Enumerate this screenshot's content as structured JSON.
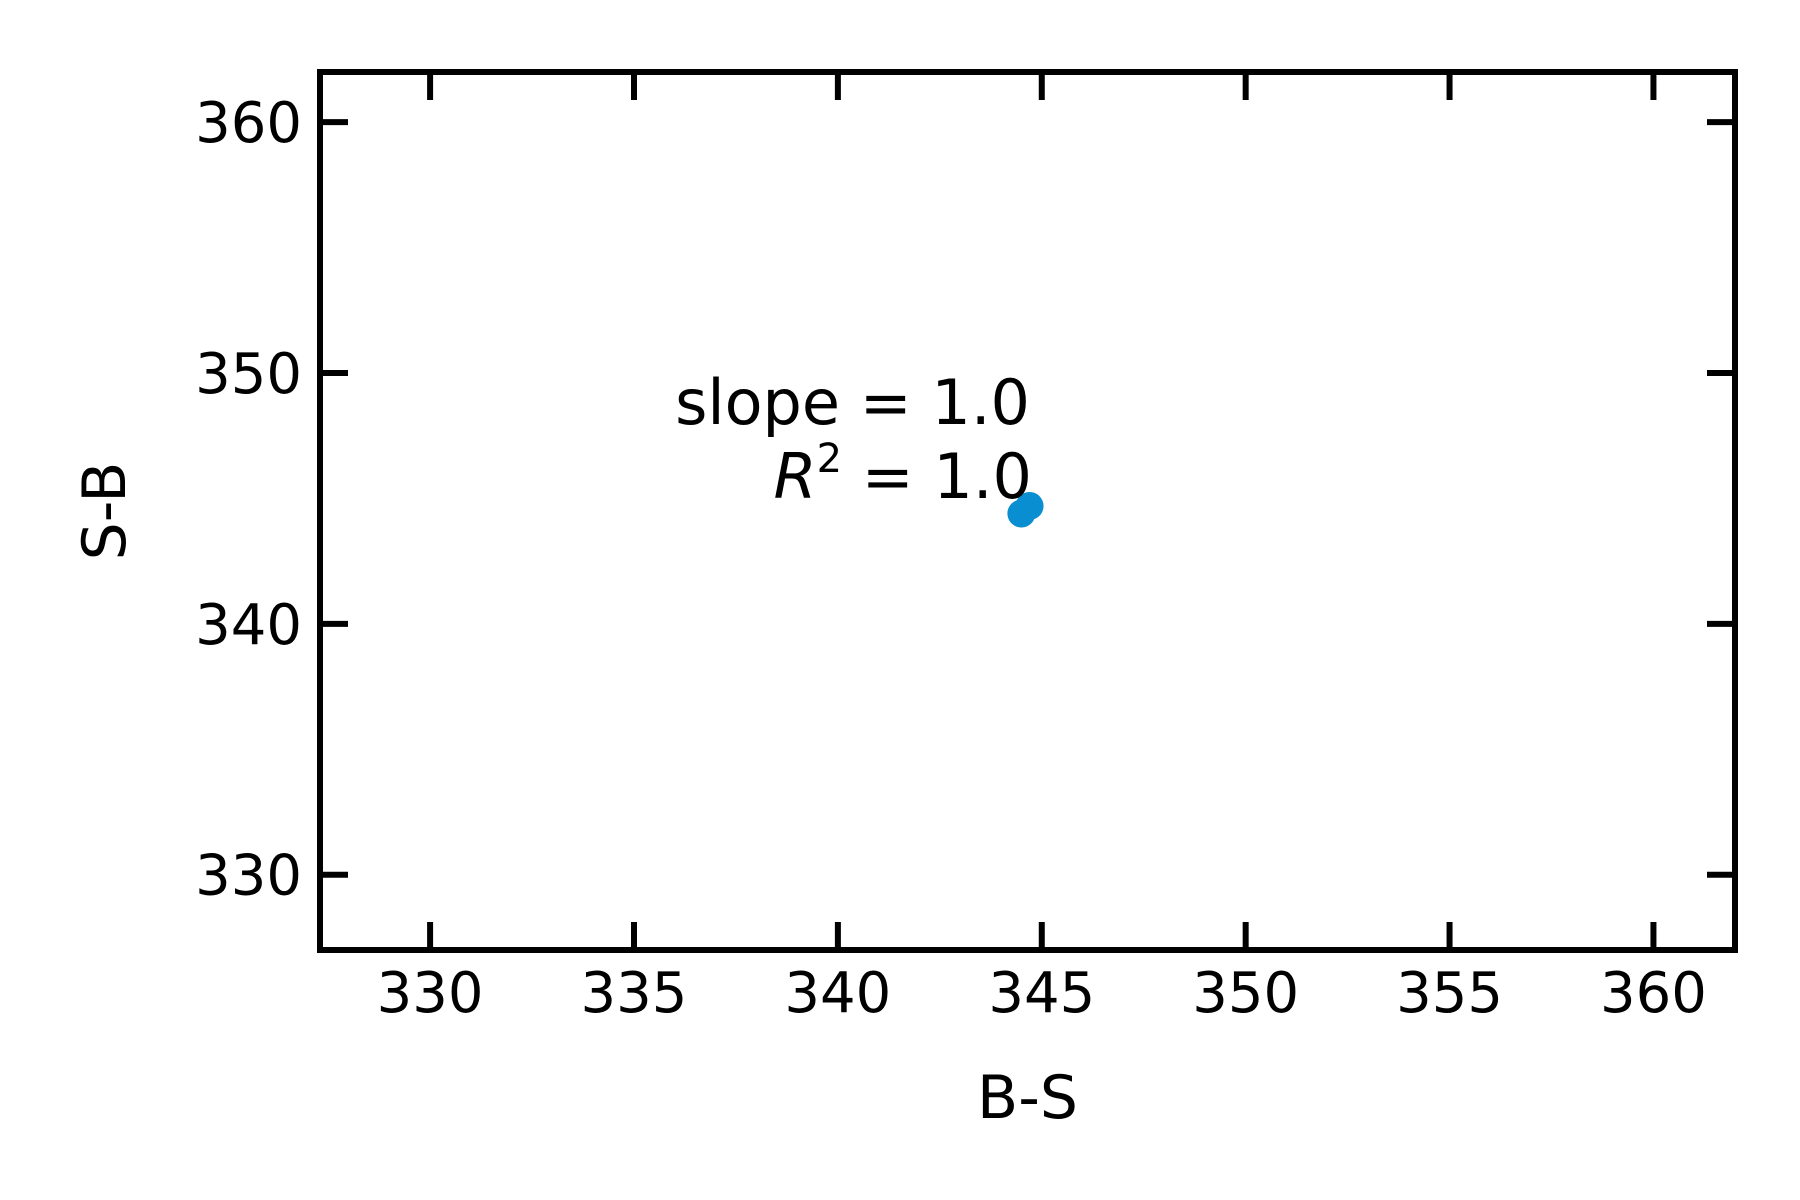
{
  "chart_data": {
    "type": "scatter",
    "xlabel": "B-S",
    "ylabel": "S-B",
    "xlim": [
      327.3,
      362.0
    ],
    "ylim": [
      327.0,
      362.0
    ],
    "x_ticks": [
      330,
      335,
      340,
      345,
      350,
      355,
      360
    ],
    "y_ticks": [
      330,
      340,
      350,
      360
    ],
    "grid": false,
    "marker_color": "#0a8ed2",
    "series": [
      {
        "x": [
          344.5,
          344.7
        ],
        "y": [
          344.4,
          344.7
        ]
      }
    ],
    "annotation": {
      "slope_text": "slope = 1.0",
      "r2_symbol": "R",
      "r2_exponent": "2",
      "r2_value_text": " = 1.0"
    }
  }
}
